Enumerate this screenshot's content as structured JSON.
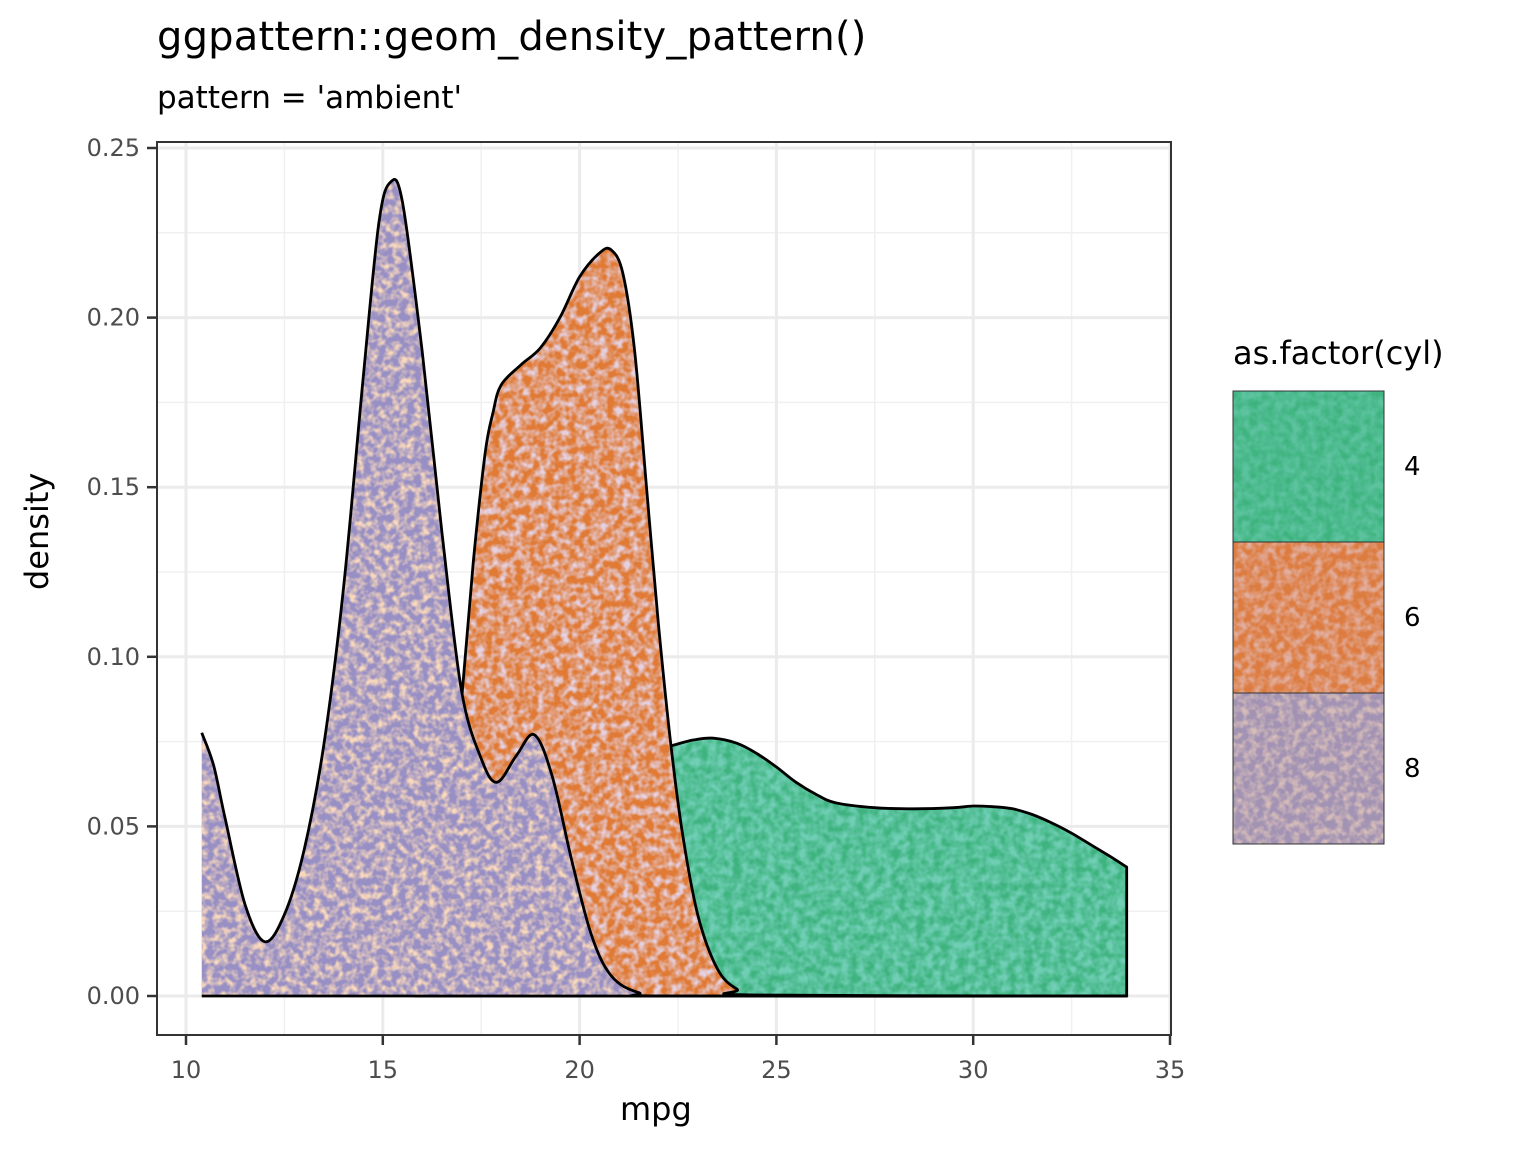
{
  "chart_data": {
    "type": "area",
    "subtype": "density",
    "title": "ggpattern::geom_density_pattern()",
    "subtitle": "pattern = 'ambient'",
    "xlabel": "mpg",
    "ylabel": "density",
    "xlim": [
      9.3,
      35.1
    ],
    "ylim": [
      -0.012,
      0.252
    ],
    "x_ticks": [
      10,
      15,
      20,
      25,
      30,
      35
    ],
    "x_tick_labels": [
      "10",
      "15",
      "20",
      "25",
      "30",
      "35"
    ],
    "y_ticks": [
      0.0,
      0.05,
      0.1,
      0.15,
      0.2,
      0.25
    ],
    "y_tick_labels": [
      "0.00",
      "0.05",
      "0.10",
      "0.15",
      "0.20",
      "0.25"
    ],
    "grid": true,
    "legend": {
      "title": "as.factor(cyl)",
      "position": "right",
      "entries": [
        "4",
        "6",
        "8"
      ]
    },
    "series": [
      {
        "name": "4",
        "color": "#3fb37f",
        "color2": "#2aa37a",
        "x": [
          21.4,
          21.8,
          22.1,
          22.4,
          22.9,
          23.4,
          24.0,
          24.5,
          25.0,
          25.5,
          26.0,
          26.5,
          27.5,
          28.5,
          29.5,
          30.0,
          30.5,
          31.0,
          31.5,
          32.0,
          32.5,
          33.0,
          33.5,
          33.9
        ],
        "y": [
          0.07,
          0.072,
          0.073,
          0.074,
          0.0755,
          0.076,
          0.0745,
          0.0715,
          0.0675,
          0.063,
          0.0595,
          0.057,
          0.0555,
          0.0552,
          0.0555,
          0.056,
          0.0558,
          0.0552,
          0.0535,
          0.051,
          0.048,
          0.0445,
          0.041,
          0.038
        ]
      },
      {
        "name": "6",
        "color": "#e07a35",
        "color2": "#c8a0b8",
        "x": [
          15.8,
          16.2,
          16.6,
          17.0,
          17.3,
          17.6,
          17.8,
          18.0,
          18.5,
          19.0,
          19.5,
          20.0,
          20.5,
          20.8,
          21.1,
          21.4,
          21.7,
          22.0,
          22.3,
          22.6,
          23.0,
          23.5,
          24.0,
          24.5,
          33.9
        ],
        "y": [
          0.002,
          0.012,
          0.04,
          0.087,
          0.128,
          0.16,
          0.172,
          0.18,
          0.186,
          0.191,
          0.2,
          0.212,
          0.219,
          0.22,
          0.213,
          0.19,
          0.15,
          0.11,
          0.076,
          0.049,
          0.024,
          0.008,
          0.002,
          0.0003,
          0.0
        ]
      },
      {
        "name": "8",
        "color": "#9890c4",
        "color2": "#f2b07e",
        "x": [
          10.4,
          10.7,
          11.0,
          11.5,
          12.0,
          12.5,
          13.0,
          13.5,
          14.0,
          14.5,
          14.9,
          15.2,
          15.5,
          16.0,
          16.5,
          17.0,
          17.5,
          17.9,
          18.4,
          18.85,
          19.3,
          19.8,
          20.3,
          20.8,
          21.5,
          22.5,
          33.9
        ],
        "y": [
          0.0776,
          0.068,
          0.052,
          0.027,
          0.016,
          0.024,
          0.043,
          0.074,
          0.12,
          0.182,
          0.228,
          0.24,
          0.234,
          0.19,
          0.137,
          0.09,
          0.07,
          0.063,
          0.071,
          0.077,
          0.065,
          0.04,
          0.018,
          0.006,
          0.001,
          0.0,
          0.0
        ]
      }
    ]
  },
  "legend": {
    "title": "as.factor(cyl)",
    "items": [
      {
        "label": "4",
        "color": "#3fb37f"
      },
      {
        "label": "6",
        "color": "#d97e4f"
      },
      {
        "label": "8",
        "color": "#b0989f"
      }
    ]
  }
}
